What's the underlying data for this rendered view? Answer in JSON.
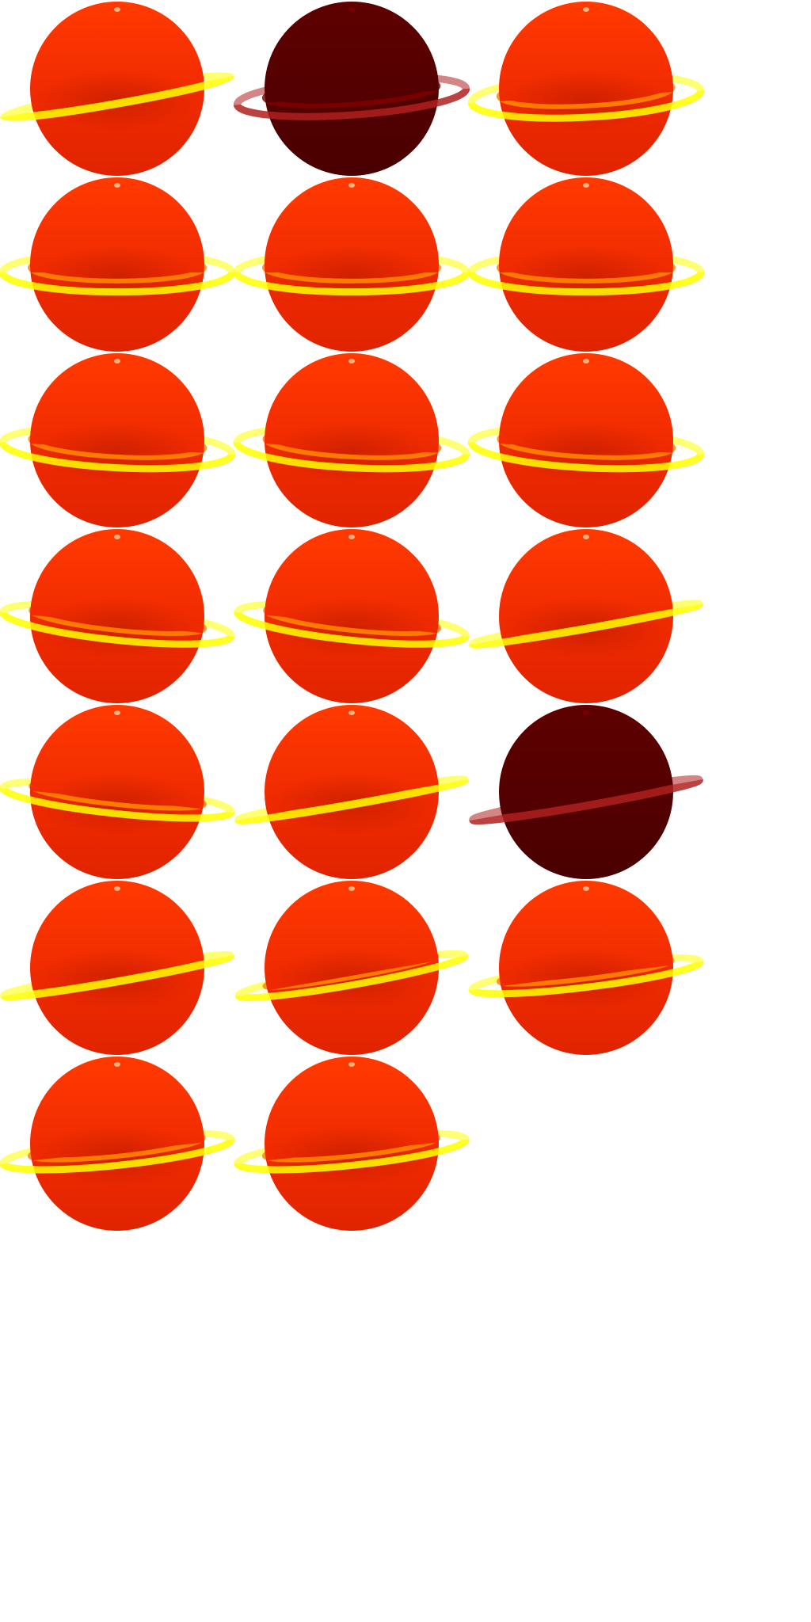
{
  "sprite_sheet": {
    "colors": {
      "background": "#ffffff",
      "planet_top": "#ff3a00",
      "planet_mid": "#f02a00",
      "planet_bottom": "#e02400",
      "planet_shade": "#b41a00",
      "dark_planet_top": "#5e0000",
      "dark_planet_bottom": "#4a0000",
      "outer_ring": "#ffff00",
      "inner_ring": "#ff7a00",
      "dark_outer_ring": "#b02020",
      "dark_inner_ring": "#7a0000",
      "highlight": "#ffb080"
    },
    "frames": [
      {
        "tilt": -10,
        "open": 0.06,
        "dark": false,
        "dark_stage": 0
      },
      {
        "tilt": -4,
        "open": 0.16,
        "dark": true,
        "dark_stage": 1
      },
      {
        "tilt": -3,
        "open": 0.18,
        "dark": false,
        "dark_stage": 0
      },
      {
        "tilt": 0,
        "open": 0.17,
        "dark": false,
        "dark_stage": 0
      },
      {
        "tilt": 0,
        "open": 0.17,
        "dark": false,
        "dark_stage": 0
      },
      {
        "tilt": 0,
        "open": 0.17,
        "dark": false,
        "dark_stage": 0
      },
      {
        "tilt": 3,
        "open": 0.17,
        "dark": false,
        "dark_stage": 0
      },
      {
        "tilt": 3,
        "open": 0.17,
        "dark": false,
        "dark_stage": 0
      },
      {
        "tilt": 3,
        "open": 0.17,
        "dark": false,
        "dark_stage": 0
      },
      {
        "tilt": 6,
        "open": 0.14,
        "dark": false,
        "dark_stage": 0
      },
      {
        "tilt": 6,
        "open": 0.14,
        "dark": false,
        "dark_stage": 0
      },
      {
        "tilt": -10,
        "open": 0.04,
        "dark": false,
        "dark_stage": 0
      },
      {
        "tilt": 6,
        "open": 0.12,
        "dark": false,
        "dark_stage": 0
      },
      {
        "tilt": -10,
        "open": 0.04,
        "dark": false,
        "dark_stage": 0
      },
      {
        "tilt": -10,
        "open": 0.05,
        "dark": true,
        "dark_stage": 2
      },
      {
        "tilt": -10,
        "open": 0.05,
        "dark": false,
        "dark_stage": 0
      },
      {
        "tilt": -10,
        "open": 0.08,
        "dark": false,
        "dark_stage": 0
      },
      {
        "tilt": -7,
        "open": 0.1,
        "dark": false,
        "dark_stage": 0
      },
      {
        "tilt": -6,
        "open": 0.12,
        "dark": false,
        "dark_stage": 0
      },
      {
        "tilt": -6,
        "open": 0.12,
        "dark": false,
        "dark_stage": 0
      }
    ]
  }
}
